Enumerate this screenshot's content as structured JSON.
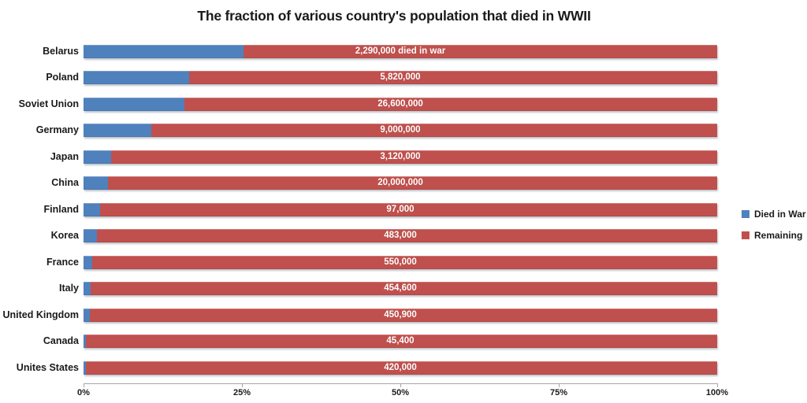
{
  "chart_data": {
    "type": "bar",
    "orientation": "horizontal",
    "stacked": "100-percent",
    "title": "The fraction of various country's population that died in WWII",
    "categories": [
      "Belarus",
      "Poland",
      "Soviet Union",
      "Germany",
      "Japan",
      "China",
      "Finland",
      "Korea",
      "France",
      "Italy",
      "United Kingdom",
      "Canada",
      "Unites States"
    ],
    "series": [
      {
        "name": "Died in War",
        "color": "#4F81BD",
        "values_pct": [
          25.3,
          16.7,
          15.9,
          10.7,
          4.4,
          3.9,
          2.6,
          2.1,
          1.4,
          1.1,
          1.0,
          0.4,
          0.32
        ]
      },
      {
        "name": "Remaining",
        "color": "#C0504D",
        "values_pct": [
          74.7,
          83.3,
          84.1,
          89.3,
          95.6,
          96.1,
          97.4,
          97.9,
          98.6,
          98.9,
          99.0,
          99.6,
          99.68
        ]
      }
    ],
    "bar_value_labels": [
      "2,290,000 died in war",
      "5,820,000",
      "26,600,000",
      "9,000,000",
      "3,120,000",
      "20,000,000",
      "97,000",
      "483,000",
      "550,000",
      "454,600",
      "450,900",
      "45,400",
      "420,000"
    ],
    "x_axis": {
      "ticks": [
        "0%",
        "25%",
        "50%",
        "75%",
        "100%"
      ],
      "range_pct": [
        0,
        100
      ],
      "gridlines": false
    },
    "legend": {
      "position": "right",
      "entries": [
        {
          "label": "Died in War",
          "color": "#4F81BD"
        },
        {
          "label": "Remaining",
          "color": "#C0504D"
        }
      ]
    }
  }
}
